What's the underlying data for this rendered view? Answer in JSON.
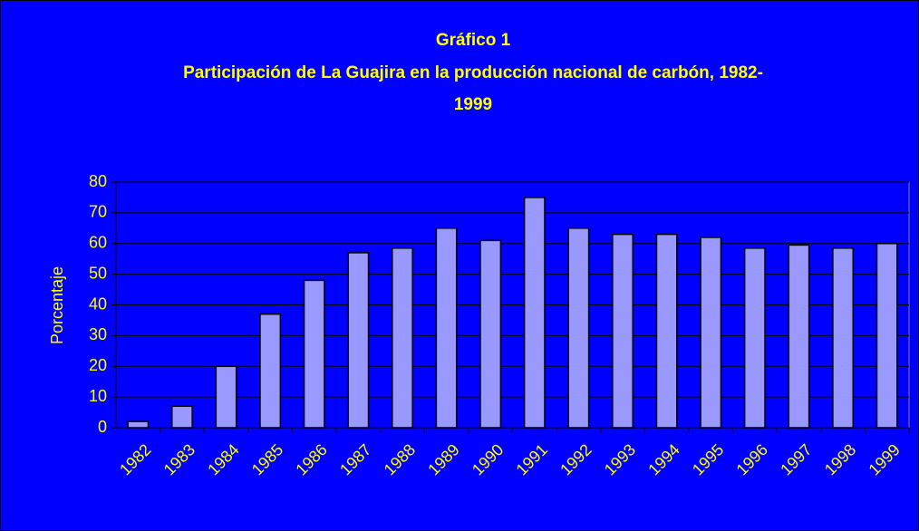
{
  "chart_data": {
    "type": "bar",
    "title": "Gráfico 1",
    "subtitle": [
      "Participación de La Guajira en la producción nacional de carbón, 1982-",
      "1999"
    ],
    "y_label": "Porcentaje",
    "categories": [
      "1982",
      "1983",
      "1984",
      "1985",
      "1986",
      "1987",
      "1988",
      "1989",
      "1990",
      "1991",
      "1992",
      "1993",
      "1994",
      "1995",
      "1996",
      "1997",
      "1998",
      "1999"
    ],
    "values": [
      2,
      7,
      20,
      37,
      48,
      57,
      58.5,
      65,
      61,
      75,
      65,
      63,
      63,
      62,
      58.5,
      59.5,
      58.5,
      60
    ],
    "color": "#9999ff",
    "ylim": [
      0,
      80
    ],
    "yticks": [
      0,
      10,
      20,
      30,
      40,
      50,
      60,
      70,
      80
    ],
    "grid": true
  }
}
